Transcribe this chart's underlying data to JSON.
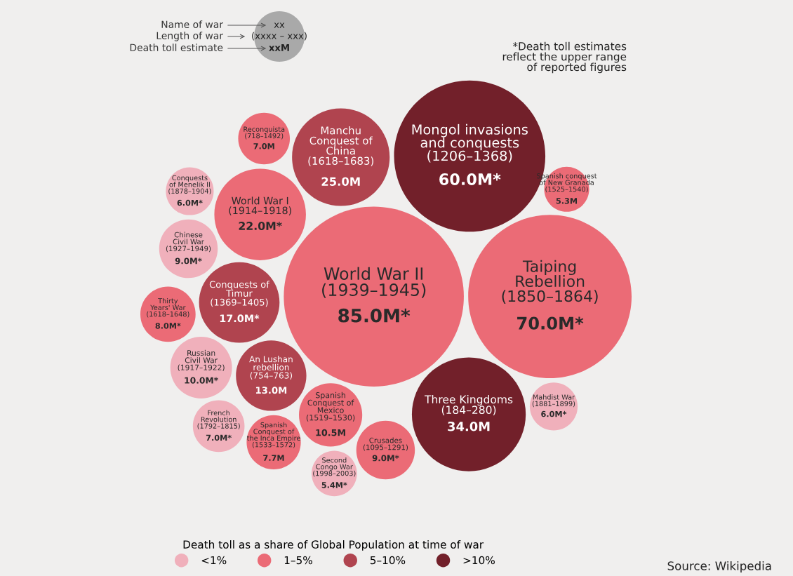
{
  "chart_data": {
    "type": "other",
    "categories": [
      "Crusades\n(1095–1291)",
      "Spanish\nConquest of\nthe Inca Empire\n(1533–1572)",
      "Manchu\nConquest of\nChina\n(1618–1683)",
      "Three Kingdoms\n(184–280)",
      "World War I\n(1914–1918)",
      "Spanish\nConquest of\nMexico\n(1519–1530)",
      "Chinese\nCivil War\n(1927–1949)",
      "Conquests\nof Menelik II\n(1878–1904)",
      "World War II\n(1939–1945)",
      "Taiping\nRebellion\n(1850–1864)",
      "Second\nCongo War\n(1998–2003)",
      "Spanish conquest\nof New Granada\n(1525–1540)",
      "Mahdist War\n(1881–1899)",
      "Thirty\nYears' War\n(1618–1648)",
      "Russian\nCivil War\n(1917–1922)",
      "An Lushan\nrebellion\n(754–763)",
      "Conquests of\nTimur\n(1369–1405)",
      "Mongol invasions\nand conquests\n(1206–1368)",
      "French\nRevolution\n(1792–1815)",
      "Reconquista\n(718–1492)"
    ],
    "series": [
      {
        "name": "<1%",
        "color": "#f0b0bb",
        "values": [
          null,
          null,
          null,
          null,
          null,
          null,
          9.0,
          6.0,
          null,
          null,
          5.4,
          null,
          6.0,
          null,
          10.0,
          null,
          null,
          null,
          7.0,
          null
        ],
        "value_labels": [
          null,
          null,
          null,
          null,
          null,
          null,
          "9.0M*",
          "6.0M*",
          null,
          null,
          "5.4M*",
          null,
          "6.0M*",
          null,
          "10.0M*",
          null,
          null,
          null,
          "7.0M*",
          null
        ]
      },
      {
        "name": "1–5%",
        "color": "#eb6b76",
        "values": [
          9.0,
          7.7,
          null,
          null,
          22.0,
          10.5,
          null,
          null,
          85.0,
          70.0,
          null,
          5.3,
          null,
          8.0,
          null,
          null,
          null,
          null,
          null,
          7.0
        ],
        "value_labels": [
          "9.0M*",
          "7.7M",
          null,
          null,
          "22.0M*",
          "10.5M",
          null,
          null,
          "85.0M*",
          "70.0M*",
          null,
          "5.3M",
          null,
          "8.0M*",
          null,
          null,
          null,
          null,
          null,
          "7.0M"
        ]
      },
      {
        "name": "5–10%",
        "color": "#b0444f",
        "values": [
          null,
          null,
          25.0,
          null,
          null,
          null,
          null,
          null,
          null,
          null,
          null,
          null,
          null,
          null,
          null,
          13.0,
          17.0,
          null,
          null,
          null
        ],
        "value_labels": [
          null,
          null,
          "25.0M",
          null,
          null,
          null,
          null,
          null,
          null,
          null,
          null,
          null,
          null,
          null,
          null,
          "13.0M",
          "17.0M*",
          null,
          null,
          null
        ]
      },
      {
        "name": ">10%",
        "color": "#72202a",
        "values": [
          null,
          null,
          null,
          34.0,
          null,
          null,
          null,
          null,
          null,
          null,
          null,
          null,
          null,
          null,
          null,
          null,
          null,
          60.0,
          null,
          null
        ],
        "value_labels": [
          null,
          null,
          null,
          "34.0M",
          null,
          null,
          null,
          null,
          null,
          null,
          null,
          null,
          null,
          null,
          null,
          null,
          null,
          "60.0M*",
          null,
          null
        ]
      }
    ],
    "legend": "bottom",
    "legend_title": "Death toll as a share of Global Population at time of war",
    "annotations": [
      "Name of war",
      "Length of war",
      "Death toll estimate",
      "xx",
      "(xxxx – xxx)",
      "xxM",
      "*Death toll estimates\nreflect the upper range\nof reported figures",
      "Source: Wikipedia"
    ]
  }
}
